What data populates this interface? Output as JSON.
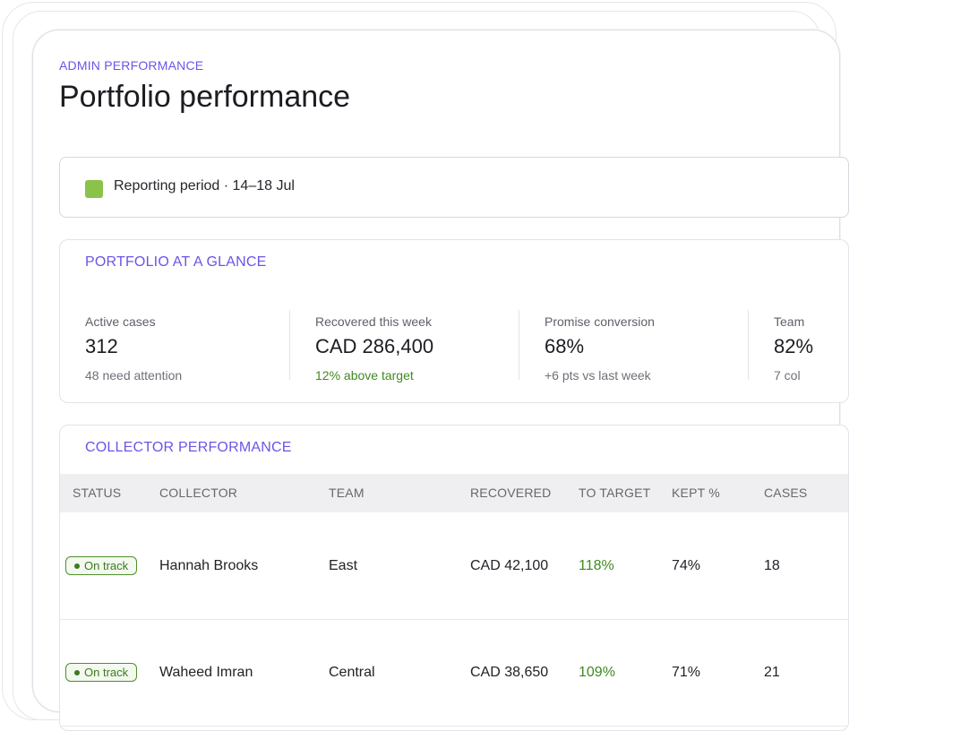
{
  "header": {
    "eyebrow": "ADMIN PERFORMANCE",
    "title": "Portfolio performance"
  },
  "period": {
    "label": "Reporting period · 14–18 Jul",
    "swatch_color": "#8bc34a"
  },
  "glance": {
    "title": "PORTFOLIO AT A GLANCE",
    "metrics": [
      {
        "label": "Active cases",
        "value": "312",
        "note": "48 need attention"
      },
      {
        "label": "Recovered this week",
        "value": "CAD 286,400",
        "note": "12% above target"
      },
      {
        "label": "Promise conversion",
        "value": "68%",
        "note": "+6 pts vs last week"
      },
      {
        "label": "Team",
        "value": "82%",
        "note": "7 col"
      }
    ]
  },
  "collectors": {
    "title": "COLLECTOR PERFORMANCE",
    "columns": [
      "STATUS",
      "COLLECTOR",
      "TEAM",
      "RECOVERED",
      "TO TARGET",
      "KEPT %",
      "CASES"
    ],
    "rows": [
      {
        "status": "On track",
        "collector": "Hannah Brooks",
        "team": "East",
        "recovered": "CAD 42,100",
        "to_target": "118%",
        "kept": "74%",
        "cases": "18"
      },
      {
        "status": "On track",
        "collector": "Waheed Imran",
        "team": "Central",
        "recovered": "CAD 38,650",
        "to_target": "109%",
        "kept": "71%",
        "cases": "21"
      }
    ]
  },
  "colors": {
    "accent": "#6b55e6",
    "positive": "#3f8a1f"
  }
}
